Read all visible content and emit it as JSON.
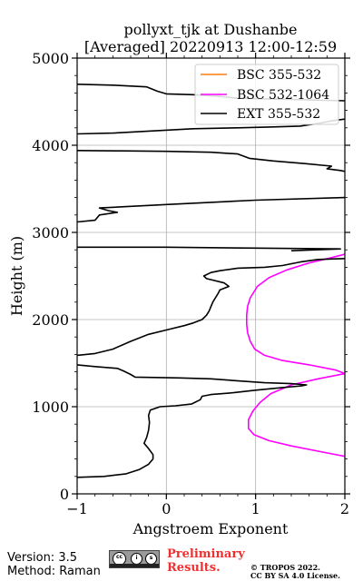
{
  "chart_data": {
    "type": "line",
    "title": [
      "pollyxt_tjk at Dushanbe",
      "[Averaged] 20220913 12:00-12:59"
    ],
    "xlabel": "Angstroem Exponent",
    "ylabel": "Height (m)",
    "xlim": [
      -1,
      2
    ],
    "ylim": [
      0,
      5000
    ],
    "x_ticks": [
      -1,
      0,
      1,
      2
    ],
    "y_ticks": [
      0,
      1000,
      2000,
      3000,
      4000,
      5000
    ],
    "grid": true,
    "legend_position": "top-right",
    "series": [
      {
        "name": "BSC 355-532",
        "color": "#ff7f0e",
        "points": []
      },
      {
        "name": "BSC 532-1064",
        "color": "#ff00ff",
        "points": [
          [
            2.0,
            430
          ],
          [
            1.7,
            490
          ],
          [
            1.4,
            550
          ],
          [
            1.15,
            610
          ],
          [
            0.98,
            680
          ],
          [
            0.92,
            750
          ],
          [
            0.92,
            850
          ],
          [
            0.97,
            950
          ],
          [
            1.05,
            1050
          ],
          [
            1.17,
            1150
          ],
          [
            1.4,
            1250
          ],
          [
            1.7,
            1320
          ],
          [
            2.0,
            1380
          ],
          [
            1.9,
            1420
          ],
          [
            1.6,
            1480
          ],
          [
            1.3,
            1530
          ],
          [
            1.1,
            1590
          ],
          [
            0.99,
            1660
          ],
          [
            0.94,
            1750
          ],
          [
            0.91,
            1850
          ],
          [
            0.9,
            1950
          ],
          [
            0.9,
            2050
          ],
          [
            0.91,
            2150
          ],
          [
            0.94,
            2250
          ],
          [
            1.02,
            2380
          ],
          [
            1.15,
            2480
          ],
          [
            1.35,
            2570
          ],
          [
            1.6,
            2650
          ],
          [
            1.85,
            2710
          ],
          [
            2.0,
            2750
          ]
        ]
      },
      {
        "name": "EXT 355-532",
        "color": "#000000",
        "segments": [
          [
            [
              -1.0,
              190
            ],
            [
              -0.7,
              200
            ],
            [
              -0.45,
              230
            ],
            [
              -0.3,
              280
            ],
            [
              -0.2,
              340
            ],
            [
              -0.15,
              400
            ],
            [
              -0.15,
              450
            ],
            [
              -0.2,
              520
            ],
            [
              -0.25,
              580
            ],
            [
              -0.22,
              650
            ],
            [
              -0.2,
              730
            ],
            [
              -0.19,
              820
            ],
            [
              -0.2,
              900
            ],
            [
              -0.18,
              960
            ],
            [
              -0.07,
              1000
            ],
            [
              0.1,
              1010
            ],
            [
              0.28,
              1030
            ],
            [
              0.38,
              1080
            ],
            [
              0.4,
              1120
            ],
            [
              0.5,
              1140
            ],
            [
              0.75,
              1160
            ],
            [
              1.0,
              1190
            ],
            [
              1.3,
              1220
            ],
            [
              1.52,
              1240
            ],
            [
              1.57,
              1250
            ],
            [
              1.4,
              1265
            ],
            [
              1.1,
              1275
            ],
            [
              0.9,
              1290
            ],
            [
              0.5,
              1320
            ],
            [
              0.15,
              1330
            ],
            [
              -0.35,
              1340
            ],
            [
              -0.4,
              1370
            ],
            [
              -0.48,
              1410
            ],
            [
              -0.55,
              1440
            ],
            [
              -0.8,
              1460
            ],
            [
              -1.0,
              1480
            ]
          ],
          [
            [
              -1.0,
              1590
            ],
            [
              -0.8,
              1610
            ],
            [
              -0.6,
              1660
            ],
            [
              -0.4,
              1750
            ],
            [
              -0.2,
              1830
            ],
            [
              0.0,
              1880
            ],
            [
              0.2,
              1930
            ],
            [
              0.3,
              1960
            ],
            [
              0.4,
              2000
            ],
            [
              0.45,
              2050
            ],
            [
              0.48,
              2100
            ],
            [
              0.5,
              2150
            ],
            [
              0.52,
              2200
            ],
            [
              0.55,
              2250
            ],
            [
              0.58,
              2300
            ],
            [
              0.6,
              2340
            ],
            [
              0.7,
              2380
            ],
            [
              0.65,
              2420
            ],
            [
              0.45,
              2470
            ],
            [
              0.42,
              2500
            ],
            [
              0.5,
              2540
            ],
            [
              0.6,
              2560
            ],
            [
              0.8,
              2590
            ],
            [
              1.1,
              2600
            ],
            [
              1.3,
              2620
            ],
            [
              1.5,
              2660
            ],
            [
              1.7,
              2690
            ],
            [
              2.0,
              2700
            ]
          ],
          [
            [
              -1.0,
              2830
            ],
            [
              0.0,
              2830
            ],
            [
              1.0,
              2820
            ],
            [
              1.95,
              2810
            ],
            [
              1.4,
              2790
            ]
          ],
          [
            [
              -1.0,
              3120
            ],
            [
              -0.8,
              3140
            ],
            [
              -0.75,
              3200
            ],
            [
              -0.55,
              3230
            ],
            [
              -0.65,
              3250
            ],
            [
              -0.75,
              3280
            ],
            [
              0.0,
              3320
            ],
            [
              1.0,
              3370
            ],
            [
              2.0,
              3400
            ]
          ],
          [
            [
              -1.0,
              3940
            ],
            [
              -0.5,
              3935
            ],
            [
              0.0,
              3930
            ],
            [
              0.5,
              3920
            ],
            [
              0.8,
              3900
            ],
            [
              0.93,
              3850
            ],
            [
              1.2,
              3820
            ],
            [
              1.55,
              3790
            ],
            [
              1.85,
              3760
            ],
            [
              1.8,
              3730
            ],
            [
              1.95,
              3710
            ],
            [
              2.0,
              3700
            ]
          ],
          [
            [
              -1.0,
              4130
            ],
            [
              -0.6,
              4140
            ],
            [
              0.3,
              4190
            ],
            [
              0.8,
              4200
            ],
            [
              1.2,
              4210
            ],
            [
              1.5,
              4220
            ],
            [
              1.7,
              4250
            ],
            [
              1.85,
              4280
            ],
            [
              2.0,
              4300
            ]
          ],
          [
            [
              -1.0,
              4700
            ],
            [
              -0.6,
              4690
            ],
            [
              -0.22,
              4670
            ],
            [
              -0.1,
              4620
            ],
            [
              0.0,
              4590
            ],
            [
              0.3,
              4580
            ],
            [
              0.6,
              4560
            ],
            [
              0.8,
              4540
            ],
            [
              1.2,
              4530
            ],
            [
              1.6,
              4520
            ],
            [
              2.0,
              4510
            ]
          ]
        ]
      }
    ]
  },
  "footer": {
    "version": "Version: 3.5",
    "method": "Method: Raman",
    "preliminary_line1": "Preliminary",
    "preliminary_line2": "Results.",
    "copyright_line1": "© TROPOS 2022.",
    "copyright_line2": "CC BY SA 4.0 License."
  }
}
